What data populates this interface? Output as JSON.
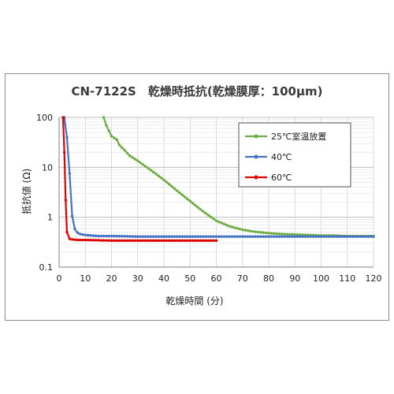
{
  "chart_data": {
    "type": "line",
    "title": "CN-7122S　乾燥時抵抗(乾燥膜厚：100μm)",
    "xlabel": "乾燥時間 (分)",
    "ylabel": "抵抗値 (Ω)",
    "xlim": [
      0,
      120
    ],
    "ylim": [
      0.1,
      100
    ],
    "y_scale": "log",
    "x_ticks": [
      0,
      10,
      20,
      30,
      40,
      50,
      60,
      70,
      80,
      90,
      100,
      110,
      120
    ],
    "y_ticks": [
      0.1,
      1,
      10,
      100
    ],
    "x_tick_labels": [
      "0",
      "10",
      "20",
      "30",
      "40",
      "50",
      "60",
      "70",
      "80",
      "90",
      "100",
      "110",
      "120"
    ],
    "y_tick_labels": [
      "0.1",
      "1",
      "10",
      "100"
    ],
    "grid": true,
    "legend_position": "top-right",
    "series": [
      {
        "name": "25℃室温放置",
        "color": "#70ad47",
        "x": [
          17,
          18,
          20,
          22,
          23,
          25,
          27,
          30,
          35,
          40,
          45,
          50,
          55,
          60,
          65,
          70,
          75,
          80,
          85,
          90,
          95,
          100,
          105,
          110,
          115,
          120
        ],
        "y": [
          100,
          70,
          42,
          36,
          28,
          22,
          17,
          13.5,
          8.8,
          5.6,
          3.4,
          2.1,
          1.3,
          0.85,
          0.66,
          0.56,
          0.51,
          0.48,
          0.46,
          0.45,
          0.44,
          0.43,
          0.43,
          0.42,
          0.42,
          0.42
        ]
      },
      {
        "name": "40℃",
        "color": "#4472c4",
        "x": [
          2,
          3,
          4,
          5,
          6,
          7,
          8,
          10,
          15,
          20,
          30,
          40,
          50,
          60,
          70,
          80,
          90,
          100,
          110,
          120
        ],
        "y": [
          100,
          40,
          7.5,
          1.05,
          0.58,
          0.49,
          0.46,
          0.44,
          0.42,
          0.42,
          0.41,
          0.41,
          0.41,
          0.41,
          0.41,
          0.41,
          0.41,
          0.41,
          0.41,
          0.41
        ]
      },
      {
        "name": "60℃",
        "color": "#e00000",
        "x": [
          1.5,
          2,
          2.5,
          3,
          4,
          5,
          7,
          10,
          15,
          20,
          30,
          40,
          50,
          60
        ],
        "y": [
          100,
          20,
          2.2,
          0.5,
          0.37,
          0.36,
          0.35,
          0.35,
          0.345,
          0.34,
          0.34,
          0.34,
          0.34,
          0.34
        ]
      }
    ]
  }
}
